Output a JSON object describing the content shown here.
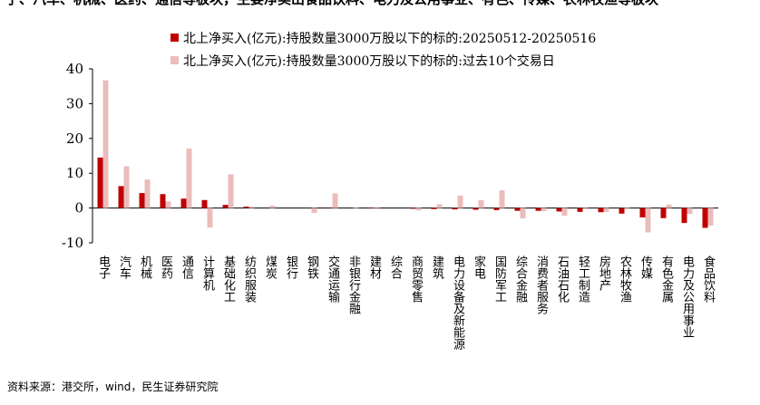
{
  "chart_data": {
    "type": "bar",
    "title": "子、汽车、机械、医药、通信等板块，主要净卖出食品饮料、电力及公用事业、有色、传媒、农林牧渔等板块",
    "source": "资料来源：港交所，wind，民生证券研究院",
    "categories": [
      "电子",
      "汽车",
      "机械",
      "医药",
      "通信",
      "计算机",
      "基础化工",
      "纺织服装",
      "煤炭",
      "银行",
      "钢铁",
      "交通运输",
      "非银行金融",
      "建材",
      "综合",
      "商贸零售",
      "建筑",
      "电力设备及新能源",
      "家电",
      "国防军工",
      "综合金融",
      "消费者服务",
      "石油石化",
      "轻工制造",
      "房地产",
      "农林牧渔",
      "传媒",
      "有色金属",
      "电力及公用事业",
      "食品饮料"
    ],
    "series": [
      {
        "name": "北上净买入(亿元):持股数量3000万股以下的标的:20250512-20250516",
        "color": "#c00000",
        "values": [
          14.5,
          6.3,
          4.3,
          4.0,
          2.7,
          2.3,
          0.9,
          0.4,
          0,
          0,
          0,
          0.1,
          0,
          -0.1,
          0,
          -0.2,
          -0.3,
          -0.4,
          -0.5,
          -0.6,
          -0.8,
          -0.8,
          -1.0,
          -1.1,
          -1.2,
          -1.6,
          -2.7,
          -2.9,
          -4.3,
          -5.7
        ]
      },
      {
        "name": "北上净买入(亿元):持股数量3000万股以下的标的:过去10个交易日",
        "color": "#ebbcbc",
        "values": [
          36.7,
          12.0,
          8.2,
          1.9,
          17.1,
          -5.6,
          9.7,
          0.4,
          0.7,
          0,
          -1.4,
          4.2,
          -0.2,
          -0.3,
          0,
          -0.7,
          1.1,
          3.6,
          2.3,
          5.1,
          -3.0,
          -0.9,
          -2.2,
          -0.3,
          -1.1,
          -0.3,
          -7.0,
          1.0,
          -1.7,
          -5.0
        ]
      }
    ],
    "ylim": [
      -10,
      40
    ],
    "yticks": [
      -10,
      0,
      10,
      20,
      30,
      40
    ]
  }
}
